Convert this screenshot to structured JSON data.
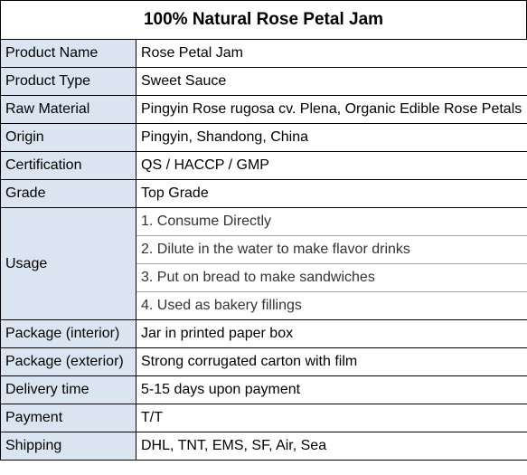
{
  "title": "100% Natural Rose Petal Jam",
  "rows": {
    "product_name": {
      "label": "Product Name",
      "value": "Rose Petal Jam"
    },
    "product_type": {
      "label": "Product Type",
      "value": "Sweet Sauce"
    },
    "raw_material": {
      "label": "Raw Material",
      "value": "Pingyin Rose rugosa cv. Plena, Organic Edible Rose Petals"
    },
    "origin": {
      "label": "Origin",
      "value": "Pingyin, Shandong, China"
    },
    "certification": {
      "label": "Certification",
      "value": "QS / HACCP / GMP"
    },
    "grade": {
      "label": "Grade",
      "value": "Top Grade"
    },
    "usage": {
      "label": "Usage",
      "items": [
        "1. Consume Directly",
        "2. Dilute in the water to make flavor drinks",
        "3. Put on bread to make sandwiches",
        "4. Used as bakery fillings"
      ]
    },
    "package_interior": {
      "label": "Package (interior)",
      "value": "Jar in printed paper box"
    },
    "package_exterior": {
      "label": "Package (exterior)",
      "value": "Strong corrugated carton with film"
    },
    "delivery_time": {
      "label": "Delivery time",
      "value": "5-15 days upon payment"
    },
    "payment": {
      "label": "Payment",
      "value": "T/T"
    },
    "shipping": {
      "label": "Shipping",
      "value": "DHL, TNT, EMS, SF, Air, Sea"
    }
  },
  "colors": {
    "label_background": "#dbe5f1",
    "border": "#000000"
  }
}
